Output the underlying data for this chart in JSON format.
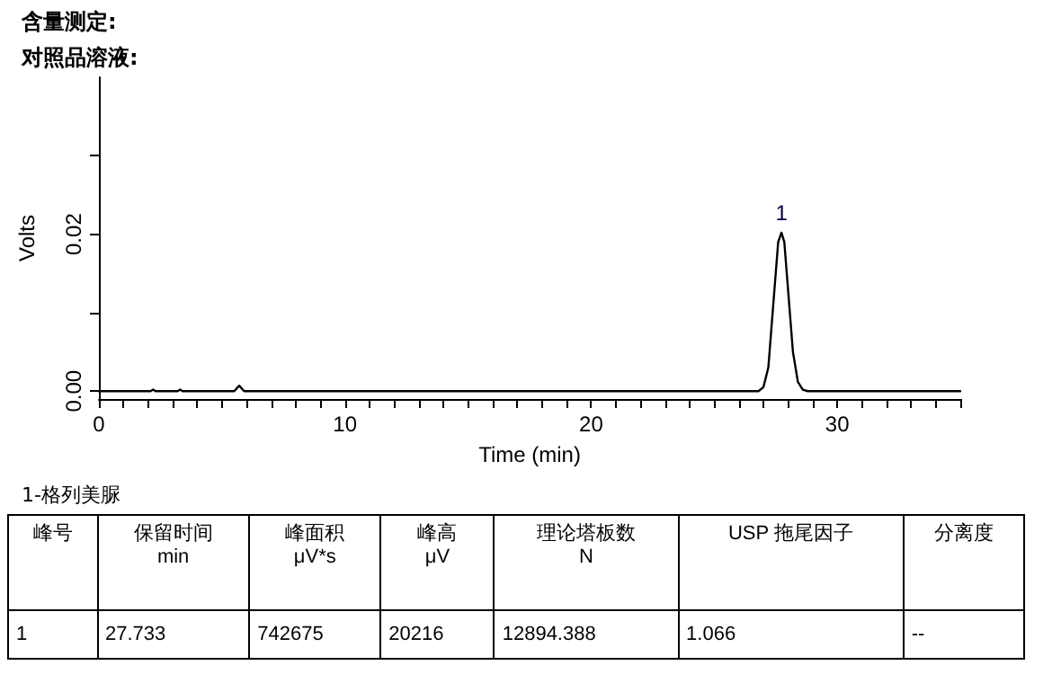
{
  "chart_data": {
    "type": "line",
    "title": "含量测定:",
    "subtitle": "对照品溶液:",
    "xlabel": "Time (min)",
    "ylabel": "Volts",
    "x": [
      0,
      2.1,
      2.2,
      2.3,
      3.2,
      3.3,
      3.4,
      5.5,
      5.7,
      5.9,
      26.8,
      27.0,
      27.2,
      27.4,
      27.6,
      27.733,
      27.85,
      28.0,
      28.2,
      28.4,
      28.6,
      28.8,
      35
    ],
    "values": [
      0,
      0,
      0.0002,
      0,
      0,
      0.0002,
      0,
      0,
      0.0007,
      0,
      0,
      0.0005,
      0.003,
      0.011,
      0.019,
      0.0202,
      0.019,
      0.013,
      0.005,
      0.0012,
      0.0002,
      0,
      0
    ],
    "color": "#000000",
    "marker": "none",
    "line_style": "solid",
    "grid": false,
    "xlim": [
      0,
      35
    ],
    "ylim": [
      -0.001,
      0.04
    ],
    "xticks": [
      0,
      {
        "value": 1,
        "label": null
      },
      {
        "value": 2,
        "label": null
      },
      {
        "value": 3,
        "label": null
      },
      {
        "value": 4,
        "label": null
      },
      {
        "value": 5,
        "label": null
      },
      {
        "value": 6,
        "label": null
      },
      {
        "value": 7,
        "label": null
      },
      {
        "value": 8,
        "label": null
      },
      {
        "value": 9,
        "label": null
      },
      10,
      {
        "value": 11,
        "label": null
      },
      {
        "value": 12,
        "label": null
      },
      {
        "value": 13,
        "label": null
      },
      {
        "value": 14,
        "label": null
      },
      {
        "value": 15,
        "label": null
      },
      {
        "value": 16,
        "label": null
      },
      {
        "value": 17,
        "label": null
      },
      {
        "value": 18,
        "label": null
      },
      {
        "value": 19,
        "label": null
      },
      20,
      {
        "value": 21,
        "label": null
      },
      {
        "value": 22,
        "label": null
      },
      {
        "value": 23,
        "label": null
      },
      {
        "value": 24,
        "label": null
      },
      {
        "value": 25,
        "label": null
      },
      {
        "value": 26,
        "label": null
      },
      {
        "value": 27,
        "label": null
      },
      {
        "value": 28,
        "label": null
      },
      {
        "value": 29,
        "label": null
      },
      30,
      {
        "value": 31,
        "label": null
      },
      {
        "value": 32,
        "label": null
      },
      {
        "value": 33,
        "label": null
      },
      {
        "value": 34,
        "label": null
      },
      {
        "value": 35,
        "label": null
      }
    ],
    "yticks": [
      {
        "value": 0,
        "label": "0.00"
      },
      {
        "value": 0.01,
        "label": null
      },
      {
        "value": 0.02,
        "label": "0.02"
      },
      {
        "value": 0.03,
        "label": null
      }
    ],
    "annotations": [
      {
        "text": "1",
        "x": 27.733,
        "y": 0.0202
      },
      "1-格列美脲",
      "峰号",
      "保留时间\nmin",
      "峰面积\nμV*s",
      "峰高\nμV",
      "理论塔板数\nN",
      "USP 拖尾因子",
      "分离度",
      "1",
      "27.733",
      "742675",
      "20216",
      "12894.388",
      "1.066",
      "--"
    ]
  }
}
